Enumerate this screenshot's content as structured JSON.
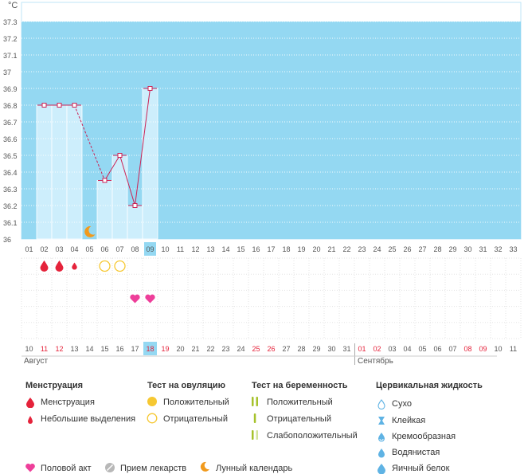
{
  "chart_data": {
    "type": "line",
    "unit_label": "°C",
    "y_ticks": [
      "37.3",
      "37.2",
      "37.1",
      "37",
      "36.9",
      "36.8",
      "36.7",
      "36.6",
      "36.5",
      "36.4",
      "36.3",
      "36.2",
      "36.1",
      "36"
    ],
    "ylim": [
      36,
      37.3
    ],
    "cover_line": 36.9,
    "cycle_days": [
      "01",
      "02",
      "03",
      "04",
      "05",
      "06",
      "07",
      "08",
      "09",
      "10",
      "11",
      "12",
      "13",
      "14",
      "15",
      "16",
      "17",
      "18",
      "19",
      "20",
      "21",
      "22",
      "23",
      "24",
      "25",
      "26",
      "27",
      "28",
      "29",
      "30",
      "31",
      "32",
      "33"
    ],
    "current_cycle_day": "09",
    "temperature": [
      {
        "day": 2,
        "value": 36.8
      },
      {
        "day": 3,
        "value": 36.8
      },
      {
        "day": 4,
        "value": 36.8
      },
      {
        "day": 6,
        "value": 36.35
      },
      {
        "day": 7,
        "value": 36.5
      },
      {
        "day": 8,
        "value": 36.2
      },
      {
        "day": 9,
        "value": 36.9
      }
    ],
    "dashed_segments": [
      [
        4,
        6
      ]
    ],
    "dates": [
      "10",
      "11",
      "12",
      "13",
      "14",
      "15",
      "16",
      "17",
      "18",
      "19",
      "20",
      "21",
      "22",
      "23",
      "24",
      "25",
      "26",
      "27",
      "28",
      "29",
      "30",
      "31",
      "01",
      "02",
      "03",
      "04",
      "05",
      "06",
      "07",
      "08",
      "09",
      "10",
      "11"
    ],
    "weekend_dates_index": [
      1,
      2,
      8,
      9,
      15,
      16,
      22,
      23,
      29,
      30
    ],
    "today_index": 8,
    "months": [
      {
        "label": "Август",
        "start_index": 0
      },
      {
        "label": "Сентябрь",
        "start_index": 22
      }
    ],
    "markers": {
      "lunar_day": 5,
      "menstruation": [
        {
          "day": 2,
          "size": "large"
        },
        {
          "day": 3,
          "size": "large"
        },
        {
          "day": 4,
          "size": "small"
        }
      ],
      "ovulation_negative": [
        6,
        7
      ],
      "intercourse": [
        8,
        9
      ]
    }
  },
  "legend": {
    "menstruation": {
      "title": "Менструация",
      "items": [
        "Менструация",
        "Небольшие выделения"
      ]
    },
    "ovulation": {
      "title": "Тест на овуляцию",
      "items": [
        "Положительный",
        "Отрицательный"
      ]
    },
    "pregnancy": {
      "title": "Тест на беременность",
      "items": [
        "Положительный",
        "Отрицательный",
        "Слабоположительный"
      ]
    },
    "cervical": {
      "title": "Цервикальная жидкость",
      "items": [
        "Сухо",
        "Клейкая",
        "Кремообразная",
        "Водянистая",
        "Яичный белок"
      ]
    },
    "bottom": [
      "Половой акт",
      "Прием лекарств",
      "Лунный календарь"
    ]
  },
  "colors": {
    "sky": "#94d8f2",
    "bar": "#cdeefc",
    "line": "#cc2255",
    "red": "#e5233b",
    "yellow": "#f6c832",
    "pink": "#ee3f9a",
    "orange": "#f19a1d",
    "green": "#a6c22b",
    "drop_blue": "#5fb3e4"
  }
}
